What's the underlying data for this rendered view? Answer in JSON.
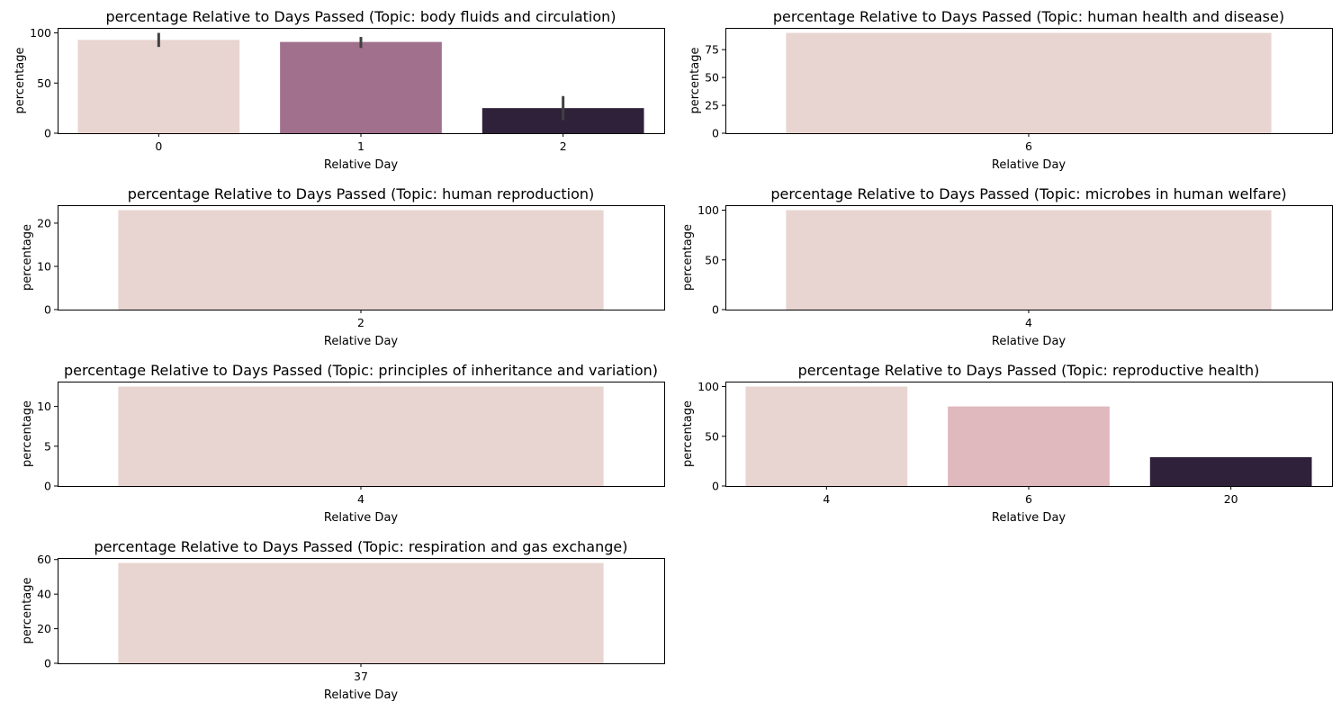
{
  "figure": {
    "panel_background": "#ffffff",
    "axes_color": "#000000",
    "errorbar_color": "#404040"
  },
  "chart_data": [
    {
      "type": "bar",
      "title": "percentage Relative to Days Passed (Topic: body fluids and circulation)",
      "xlabel": "Relative Day",
      "ylabel": "percentage",
      "categories": [
        "0",
        "1",
        "2"
      ],
      "values": [
        93,
        91,
        25
      ],
      "errors": [
        [
          86,
          100
        ],
        [
          85,
          96
        ],
        [
          13,
          37
        ]
      ],
      "colors": [
        "#e8d4d0",
        "#a1708d",
        "#2e2139"
      ],
      "ylim": [
        0,
        105
      ],
      "yticks": [
        0,
        50,
        100
      ]
    },
    {
      "type": "bar",
      "title": "percentage Relative to Days Passed (Topic: human health and disease)",
      "xlabel": "Relative Day",
      "ylabel": "percentage",
      "categories": [
        "6"
      ],
      "values": [
        90
      ],
      "colors": [
        "#e8d4d0"
      ],
      "ylim": [
        0,
        94.5
      ],
      "yticks": [
        0,
        25,
        50,
        75
      ]
    },
    {
      "type": "bar",
      "title": "percentage Relative to Days Passed (Topic: human reproduction)",
      "xlabel": "Relative Day",
      "ylabel": "percentage",
      "categories": [
        "2"
      ],
      "values": [
        23
      ],
      "colors": [
        "#e8d4d0"
      ],
      "ylim": [
        0,
        24.15
      ],
      "yticks": [
        0,
        10,
        20
      ]
    },
    {
      "type": "bar",
      "title": "percentage Relative to Days Passed (Topic: microbes in human welfare)",
      "xlabel": "Relative Day",
      "ylabel": "percentage",
      "categories": [
        "4"
      ],
      "values": [
        100
      ],
      "colors": [
        "#e8d4d0"
      ],
      "ylim": [
        0,
        105
      ],
      "yticks": [
        0,
        50,
        100
      ]
    },
    {
      "type": "bar",
      "title": "percentage Relative to Days Passed (Topic: principles of inheritance and variation)",
      "xlabel": "Relative Day",
      "ylabel": "percentage",
      "categories": [
        "4"
      ],
      "values": [
        12.5
      ],
      "colors": [
        "#e8d4d0"
      ],
      "ylim": [
        0,
        13.125
      ],
      "yticks": [
        0,
        5,
        10
      ]
    },
    {
      "type": "bar",
      "title": "percentage Relative to Days Passed (Topic: reproductive health)",
      "xlabel": "Relative Day",
      "ylabel": "percentage",
      "categories": [
        "4",
        "6",
        "20"
      ],
      "values": [
        100,
        80,
        29
      ],
      "colors": [
        "#e8d4d0",
        "#dfb9bd",
        "#2e2139"
      ],
      "ylim": [
        0,
        105
      ],
      "yticks": [
        0,
        50,
        100
      ]
    },
    {
      "type": "bar",
      "title": "percentage Relative to Days Passed (Topic: respiration and gas exchange)",
      "xlabel": "Relative Day",
      "ylabel": "percentage",
      "categories": [
        "37"
      ],
      "values": [
        58
      ],
      "colors": [
        "#e8d4d0"
      ],
      "ylim": [
        0,
        60.9
      ],
      "yticks": [
        0,
        20,
        40,
        60
      ]
    }
  ]
}
